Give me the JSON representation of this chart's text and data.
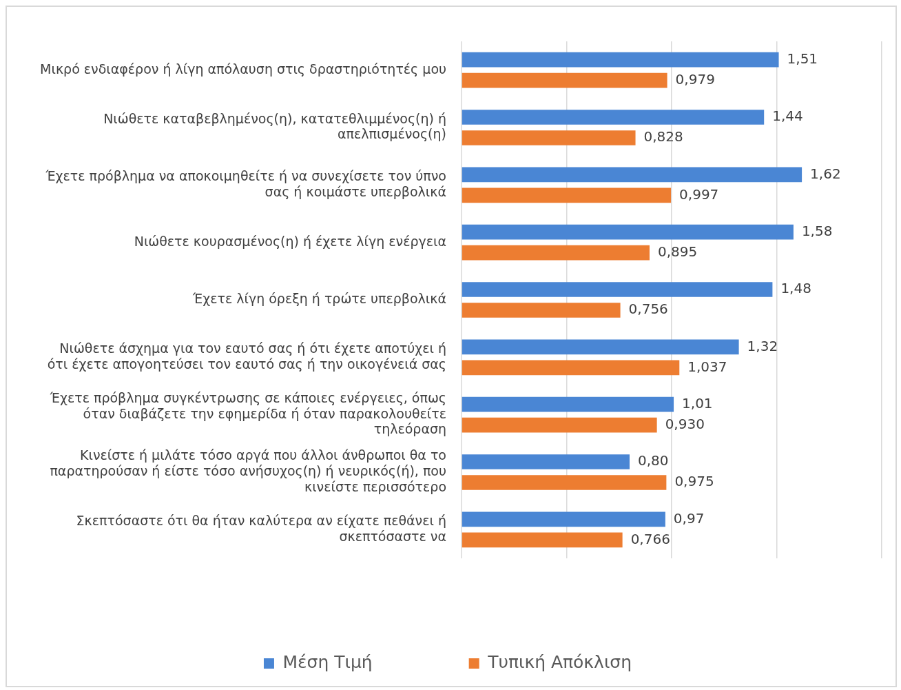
{
  "chart_data": {
    "type": "bar",
    "orientation": "horizontal",
    "categories": [
      "Μικρό ενδιαφέρον ή λίγη απόλαυση στις δραστηριότητές μου",
      "Νιώθετε καταβεβλημένος(η), κατατεθλιμμένος(η) ή απελπισμένος(η)",
      "Έχετε πρόβλημα να αποκοιμηθείτε ή να συνεχίσετε τον ύπνο σας ή κοιμάστε υπερβολικά",
      "Νιώθετε κουρασμένος(η) ή έχετε λίγη ενέργεια",
      "Έχετε λίγη όρεξη ή τρώτε υπερβολικά",
      "Νιώθετε άσχημα για τον εαυτό σας ή ότι έχετε αποτύχει ή ότι έχετε απογοητεύσει τον εαυτό σας ή την οικογένειά σας",
      "Έχετε πρόβλημα συγκέντρωσης σε κάποιες ενέργειες, όπως όταν διαβάζετε την εφημερίδα ή όταν παρακολουθείτε τηλεόραση",
      "Κινείστε ή μιλάτε τόσο αργά που άλλοι άνθρωποι θα το παρατηρούσαν ή είστε τόσο ανήσυχος(η) ή νευρικός(ή), που κινείστε περισσότερο",
      "Σκεπτόσαστε ότι θα ήταν καλύτερα αν είχατε πεθάνει ή σκεπτόσαστε να"
    ],
    "series": [
      {
        "name": "Μέση Τιμή",
        "color": "#4a86d4",
        "values": [
          1.51,
          1.44,
          1.62,
          1.58,
          1.48,
          1.32,
          1.01,
          0.8,
          0.97
        ],
        "value_labels": [
          "1,51",
          "1,44",
          "1,62",
          "1,58",
          "1,48",
          "1,32",
          "1,01",
          "0,80",
          "0,97"
        ]
      },
      {
        "name": "Τυπική Απόκλιση",
        "color": "#ed7d31",
        "values": [
          0.979,
          0.828,
          0.997,
          0.895,
          0.756,
          1.037,
          0.93,
          0.975,
          0.766
        ],
        "value_labels": [
          "0,979",
          "0,828",
          "0,997",
          "0,895",
          "0,756",
          "1,037",
          "0,930",
          "0,975",
          "0,766"
        ]
      }
    ],
    "xlim": [
      0,
      2
    ],
    "xticks": [
      {
        "value": 0,
        "label": null
      },
      {
        "value": 0.5,
        "label": null
      },
      {
        "value": 1,
        "label": null
      },
      {
        "value": 1.5,
        "label": null
      },
      {
        "value": 2,
        "label": null
      }
    ],
    "grid": "x",
    "legend": "bottom",
    "tick_labels": "y"
  }
}
